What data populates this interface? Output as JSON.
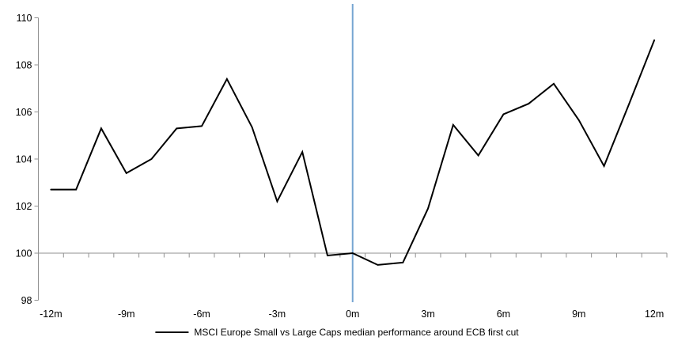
{
  "chart_data": {
    "type": "line",
    "title": "",
    "x_months": [
      -12,
      -11,
      -10,
      -9,
      -8,
      -7,
      -6,
      -5,
      -4,
      -3,
      -2,
      -1,
      0,
      1,
      2,
      3,
      4,
      5,
      6,
      7,
      8,
      9,
      10,
      11,
      12
    ],
    "x_tick_labels": [
      {
        "month": -12,
        "label": "-12m"
      },
      {
        "month": -9,
        "label": "-9m"
      },
      {
        "month": -6,
        "label": "-6m"
      },
      {
        "month": -3,
        "label": "-3m"
      },
      {
        "month": 0,
        "label": "0m"
      },
      {
        "month": 3,
        "label": "3m"
      },
      {
        "month": 6,
        "label": "6m"
      },
      {
        "month": 9,
        "label": "9m"
      },
      {
        "month": 12,
        "label": "12m"
      }
    ],
    "y_ticks": [
      98,
      100,
      102,
      104,
      106,
      108,
      110
    ],
    "y_tick_labels": [
      "98",
      "100",
      "102",
      "104",
      "106",
      "108",
      "110"
    ],
    "ylim": [
      98,
      110
    ],
    "baseline_value": 100,
    "series": [
      {
        "name": "MSCI Europe Small vs Large Caps median performance around ECB first cut",
        "color": "#000000",
        "values": [
          102.7,
          102.7,
          105.3,
          103.4,
          104.0,
          105.3,
          105.4,
          107.4,
          105.35,
          102.2,
          104.3,
          99.9,
          100.0,
          99.5,
          99.6,
          101.9,
          105.45,
          104.15,
          105.9,
          106.35,
          107.2,
          105.65,
          103.7,
          106.35,
          109.05
        ]
      }
    ],
    "event_line": {
      "month": 0,
      "color": "#76A5D2"
    },
    "axis_color": "#919191",
    "text_color": "#000000",
    "grid": "baseline-only",
    "legend_position": "bottom-center"
  },
  "legend": {
    "label": "MSCI Europe Small vs Large Caps median performance around ECB first cut"
  }
}
